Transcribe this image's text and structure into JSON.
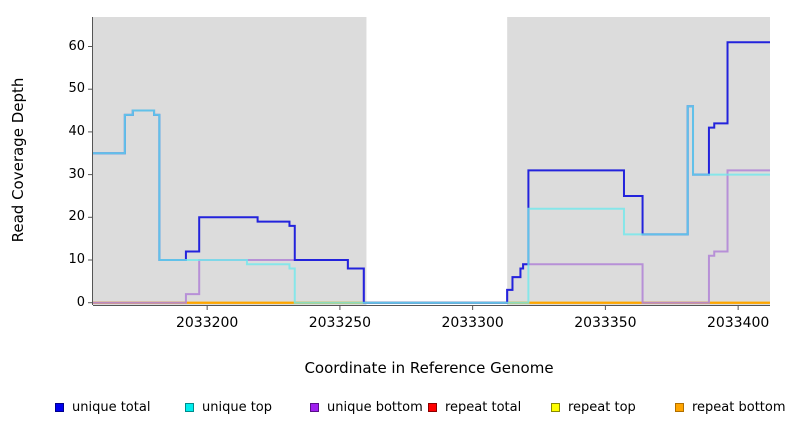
{
  "chart_data": {
    "type": "line",
    "line_style": "step-after",
    "title": "",
    "xlabel": "Coordinate in Reference Genome",
    "ylabel": "Read Coverage Depth",
    "xlim": [
      2033157,
      2033412
    ],
    "ylim": [
      0,
      67
    ],
    "x_ticks": [
      "2033200",
      "2033250",
      "2033300",
      "2033350",
      "2033400"
    ],
    "x_tick_values": [
      2033200,
      2033250,
      2033300,
      2033350,
      2033400
    ],
    "y_ticks": [
      "0",
      "10",
      "20",
      "30",
      "40",
      "50",
      "60"
    ],
    "y_tick_values": [
      0,
      10,
      20,
      30,
      40,
      50,
      60
    ],
    "grid": "off",
    "legend_position": "bottom",
    "plot_background": "#dcdcdc",
    "highlight_band": {
      "x_start": 2033260,
      "x_end": 2033313,
      "color": "#ffffff"
    },
    "series": [
      {
        "name": "unique total",
        "legend_color": "#0000ee",
        "legend_border": "#00008b",
        "line_color": "#2323dc",
        "opacity": 1,
        "points": [
          [
            2033157,
            35
          ],
          [
            2033169,
            44
          ],
          [
            2033172,
            45
          ],
          [
            2033180,
            44
          ],
          [
            2033182,
            10
          ],
          [
            2033192,
            12
          ],
          [
            2033197,
            20
          ],
          [
            2033219,
            19
          ],
          [
            2033231,
            18
          ],
          [
            2033233,
            10
          ],
          [
            2033253,
            8
          ],
          [
            2033259,
            0
          ],
          [
            2033313,
            3
          ],
          [
            2033315,
            6
          ],
          [
            2033318,
            8
          ],
          [
            2033319,
            9
          ],
          [
            2033321,
            31
          ],
          [
            2033357,
            25
          ],
          [
            2033364,
            16
          ],
          [
            2033381,
            46
          ],
          [
            2033383,
            30
          ],
          [
            2033389,
            41
          ],
          [
            2033391,
            42
          ],
          [
            2033396,
            61
          ]
        ]
      },
      {
        "name": "unique top",
        "legend_color": "#00eeee",
        "legend_border": "#008b8b",
        "line_color": "#70e8ec",
        "opacity": 0.8,
        "points": [
          [
            2033157,
            35
          ],
          [
            2033169,
            44
          ],
          [
            2033172,
            45
          ],
          [
            2033180,
            44
          ],
          [
            2033182,
            10
          ],
          [
            2033215,
            9
          ],
          [
            2033231,
            8
          ],
          [
            2033233,
            0
          ],
          [
            2033321,
            22
          ],
          [
            2033357,
            16
          ],
          [
            2033381,
            46
          ],
          [
            2033383,
            30
          ]
        ]
      },
      {
        "name": "unique bottom",
        "legend_color": "#a020f0",
        "legend_border": "#5a0f8a",
        "line_color": "#b387d6",
        "opacity": 0.9,
        "points": [
          [
            2033157,
            0
          ],
          [
            2033192,
            2
          ],
          [
            2033197,
            10
          ],
          [
            2033253,
            8
          ],
          [
            2033259,
            0
          ],
          [
            2033313,
            3
          ],
          [
            2033315,
            6
          ],
          [
            2033318,
            8
          ],
          [
            2033319,
            9
          ],
          [
            2033364,
            0
          ],
          [
            2033389,
            11
          ],
          [
            2033391,
            12
          ],
          [
            2033396,
            31
          ]
        ]
      },
      {
        "name": "repeat total",
        "legend_color": "#ff0000",
        "legend_border": "#8b0000",
        "line_color": "#dc2f5a",
        "opacity": 1,
        "points": [
          [
            2033157,
            0
          ]
        ]
      },
      {
        "name": "repeat top",
        "legend_color": "#ffff00",
        "legend_border": "#8a8a00",
        "line_color": "#ffff00",
        "opacity": 1,
        "points": [
          [
            2033157,
            0
          ]
        ]
      },
      {
        "name": "repeat bottom",
        "legend_color": "#ffa500",
        "legend_border": "#b06f00",
        "line_color": "#ffa500",
        "opacity": 1,
        "points": [
          [
            2033157,
            0
          ]
        ]
      }
    ],
    "draw_order": [
      3,
      4,
      5,
      2,
      0,
      1
    ]
  },
  "legend_item_lefts": [
    55,
    185,
    310,
    428,
    551,
    675
  ]
}
